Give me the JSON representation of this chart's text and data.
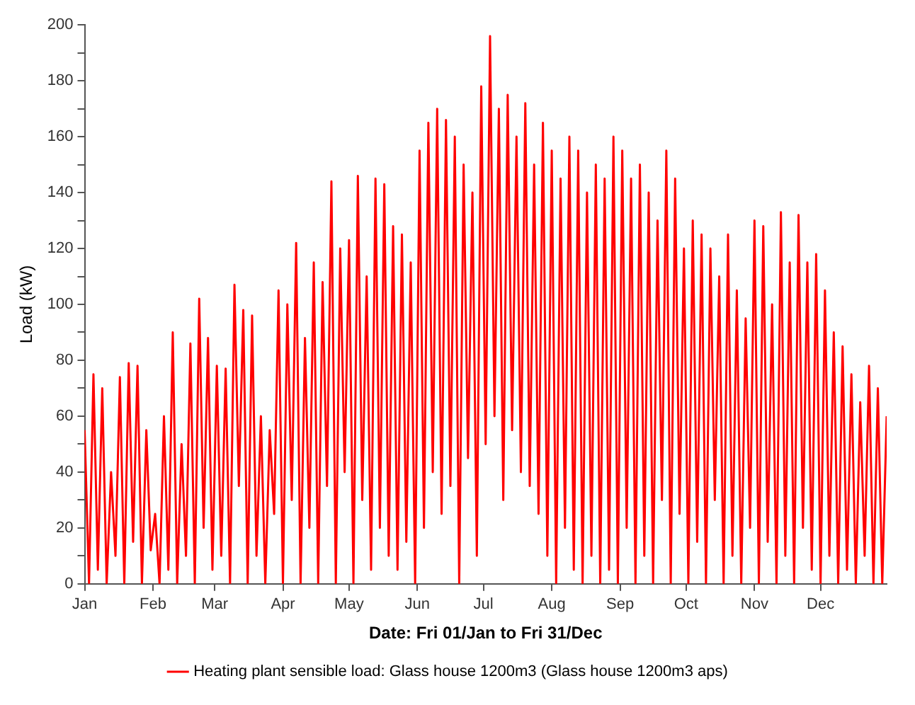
{
  "chart_data": {
    "type": "line",
    "xlabel": "Date: Fri 01/Jan to Fri 31/Dec",
    "ylabel": "Load (kW)",
    "x": [
      "--01-01",
      "--01-03",
      "--01-05",
      "--01-07",
      "--01-09",
      "--01-11",
      "--01-13",
      "--01-15",
      "--01-17",
      "--01-19",
      "--01-21",
      "--01-23",
      "--01-25",
      "--01-27",
      "--01-29",
      "--01-31",
      "--02-02",
      "--02-04",
      "--02-06",
      "--02-08",
      "--02-10",
      "--02-12",
      "--02-14",
      "--02-16",
      "--02-18",
      "--02-20",
      "--02-22",
      "--02-24",
      "--02-26",
      "--02-28",
      "--03-02",
      "--03-04",
      "--03-06",
      "--03-08",
      "--03-10",
      "--03-12",
      "--03-14",
      "--03-16",
      "--03-18",
      "--03-20",
      "--03-22",
      "--03-24",
      "--03-26",
      "--03-28",
      "--03-30",
      "--04-01",
      "--04-03",
      "--04-05",
      "--04-07",
      "--04-09",
      "--04-11",
      "--04-13",
      "--04-15",
      "--04-17",
      "--04-19",
      "--04-21",
      "--04-23",
      "--04-25",
      "--04-27",
      "--04-29",
      "--05-01",
      "--05-03",
      "--05-05",
      "--05-07",
      "--05-09",
      "--05-11",
      "--05-13",
      "--05-15",
      "--05-17",
      "--05-19",
      "--05-21",
      "--05-23",
      "--05-25",
      "--05-27",
      "--05-29",
      "--05-31",
      "--06-02",
      "--06-04",
      "--06-06",
      "--06-08",
      "--06-10",
      "--06-12",
      "--06-14",
      "--06-16",
      "--06-18",
      "--06-20",
      "--06-22",
      "--06-24",
      "--06-26",
      "--06-28",
      "--06-30",
      "--07-02",
      "--07-04",
      "--07-06",
      "--07-08",
      "--07-10",
      "--07-12",
      "--07-14",
      "--07-16",
      "--07-18",
      "--07-20",
      "--07-22",
      "--07-24",
      "--07-26",
      "--07-28",
      "--07-30",
      "--08-01",
      "--08-03",
      "--08-05",
      "--08-07",
      "--08-09",
      "--08-11",
      "--08-13",
      "--08-15",
      "--08-17",
      "--08-19",
      "--08-21",
      "--08-23",
      "--08-25",
      "--08-27",
      "--08-29",
      "--08-31",
      "--09-02",
      "--09-04",
      "--09-06",
      "--09-08",
      "--09-10",
      "--09-12",
      "--09-14",
      "--09-16",
      "--09-18",
      "--09-20",
      "--09-22",
      "--09-24",
      "--09-26",
      "--09-28",
      "--09-30",
      "--10-02",
      "--10-04",
      "--10-06",
      "--10-08",
      "--10-10",
      "--10-12",
      "--10-14",
      "--10-16",
      "--10-18",
      "--10-20",
      "--10-22",
      "--10-24",
      "--10-26",
      "--10-28",
      "--10-30",
      "--11-01",
      "--11-03",
      "--11-05",
      "--11-07",
      "--11-09",
      "--11-11",
      "--11-13",
      "--11-15",
      "--11-17",
      "--11-19",
      "--11-21",
      "--11-23",
      "--11-25",
      "--11-27",
      "--11-29",
      "--12-01",
      "--12-03",
      "--12-05",
      "--12-07",
      "--12-09",
      "--12-11",
      "--12-13",
      "--12-15",
      "--12-17",
      "--12-19",
      "--12-21",
      "--12-23",
      "--12-25",
      "--12-27",
      "--12-29",
      "--12-31"
    ],
    "series": [
      {
        "name": "Heating plant sensible load: Glass house 1200m3 (Glass house 1200m3 aps)",
        "color": "#ff0000",
        "values": [
          55,
          0,
          75,
          5,
          70,
          0,
          40,
          10,
          74,
          0,
          79,
          15,
          78,
          0,
          55,
          12,
          25,
          0,
          60,
          5,
          90,
          0,
          50,
          10,
          86,
          0,
          102,
          20,
          88,
          5,
          78,
          10,
          77,
          0,
          107,
          35,
          98,
          0,
          96,
          10,
          60,
          0,
          55,
          25,
          105,
          0,
          100,
          30,
          122,
          0,
          88,
          20,
          115,
          0,
          108,
          35,
          144,
          0,
          120,
          40,
          123,
          0,
          146,
          30,
          110,
          5,
          145,
          20,
          143,
          10,
          128,
          5,
          125,
          15,
          115,
          0,
          155,
          20,
          165,
          40,
          170,
          25,
          166,
          35,
          160,
          0,
          150,
          45,
          140,
          10,
          178,
          50,
          196,
          60,
          170,
          30,
          175,
          55,
          160,
          40,
          172,
          35,
          150,
          25,
          165,
          10,
          155,
          0,
          145,
          20,
          160,
          5,
          155,
          0,
          140,
          10,
          150,
          0,
          145,
          5,
          160,
          0,
          155,
          20,
          145,
          0,
          150,
          10,
          140,
          0,
          130,
          30,
          155,
          0,
          145,
          25,
          120,
          0,
          130,
          15,
          125,
          0,
          120,
          30,
          110,
          0,
          125,
          10,
          105,
          0,
          95,
          20,
          130,
          0,
          128,
          15,
          100,
          0,
          133,
          10,
          115,
          0,
          132,
          20,
          115,
          5,
          118,
          0,
          105,
          10,
          90,
          0,
          85,
          5,
          75,
          0,
          65,
          10,
          78,
          0,
          70,
          0,
          60
        ]
      }
    ],
    "xlim": [
      "--01-01",
      "--12-31"
    ],
    "xticks": [
      {
        "value": "--01-01",
        "label": "Jan"
      },
      {
        "value": "--02-01",
        "label": "Feb"
      },
      {
        "value": "--03-01",
        "label": "Mar"
      },
      {
        "value": "--04-01",
        "label": "Apr"
      },
      {
        "value": "--05-01",
        "label": "May"
      },
      {
        "value": "--06-01",
        "label": "Jun"
      },
      {
        "value": "--07-01",
        "label": "Jul"
      },
      {
        "value": "--08-01",
        "label": "Aug"
      },
      {
        "value": "--09-01",
        "label": "Sep"
      },
      {
        "value": "--10-01",
        "label": "Oct"
      },
      {
        "value": "--11-01",
        "label": "Nov"
      },
      {
        "value": "--12-01",
        "label": "Dec"
      }
    ],
    "ylim": [
      0,
      200
    ],
    "yticks": [
      0,
      {
        "value": 10,
        "label": null
      },
      20,
      {
        "value": 30,
        "label": null
      },
      40,
      {
        "value": 50,
        "label": null
      },
      60,
      {
        "value": 70,
        "label": null
      },
      80,
      {
        "value": 90,
        "label": null
      },
      100,
      {
        "value": 110,
        "label": null
      },
      120,
      {
        "value": 130,
        "label": null
      },
      140,
      {
        "value": 150,
        "label": null
      },
      160,
      {
        "value": 170,
        "label": null
      },
      180,
      {
        "value": 190,
        "label": null
      },
      200
    ],
    "grid": false,
    "legend": "bottom",
    "marker": "none",
    "line_style": "solid"
  }
}
